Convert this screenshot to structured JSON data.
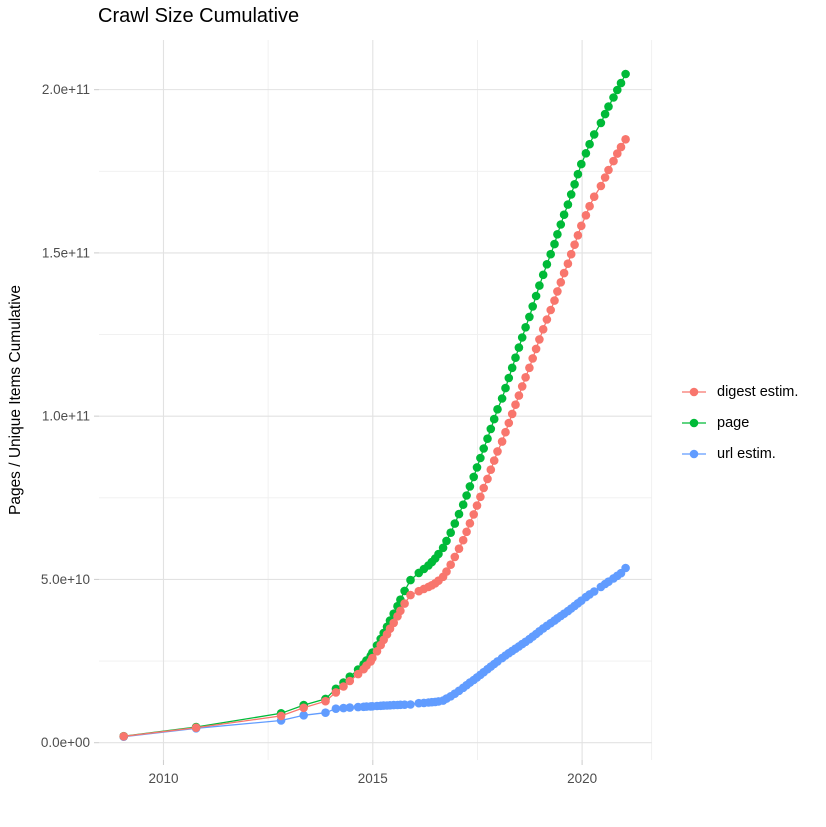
{
  "chart_data": {
    "type": "line",
    "title": "Crawl Size Cumulative",
    "xlabel": "",
    "ylabel": "Pages / Unique Items Cumulative",
    "x_unit": "crawl date (decimal year)",
    "y_unit": "count; series point values below are in billions (1e9)",
    "grid": true,
    "legend_position": "right",
    "xlim": [
      2008.46,
      2021.66
    ],
    "ylim_billion": [
      -5.3,
      215.2
    ],
    "x_major_ticks": [
      2010,
      2015,
      2020
    ],
    "x_tick_labels": [
      "2010",
      "2015",
      "2020"
    ],
    "x_minor_ticks": [
      2012.5,
      2017.5
    ],
    "y_major_ticks_billion": [
      0,
      50,
      100,
      150,
      200
    ],
    "y_tick_labels": [
      "0.0e+00",
      "5.0e+10",
      "1.0e+11",
      "1.5e+11",
      "2.0e+11"
    ],
    "y_minor_ticks_billion": [
      25,
      75,
      125,
      175
    ],
    "series": [
      {
        "name": "digest estim.",
        "color": "#F8766D",
        "points_year_billion": [
          [
            2009.05,
            1.95
          ],
          [
            2010.78,
            4.6
          ],
          [
            2012.81,
            8.2
          ],
          [
            2013.35,
            10.7
          ],
          [
            2013.87,
            12.7
          ],
          [
            2014.12,
            15.4
          ],
          [
            2014.3,
            17.2
          ],
          [
            2014.45,
            18.9
          ],
          [
            2014.65,
            21.0
          ],
          [
            2014.78,
            22.5
          ],
          [
            2014.85,
            23.6
          ],
          [
            2014.95,
            24.9
          ],
          [
            2014.99,
            25.9
          ],
          [
            2015.1,
            28.0
          ],
          [
            2015.19,
            29.9
          ],
          [
            2015.26,
            31.5
          ],
          [
            2015.34,
            33.2
          ],
          [
            2015.41,
            34.9
          ],
          [
            2015.5,
            36.7
          ],
          [
            2015.59,
            38.7
          ],
          [
            2015.66,
            40.4
          ],
          [
            2015.76,
            42.6
          ],
          [
            2015.9,
            45.2
          ],
          [
            2016.1,
            46.4
          ],
          [
            2016.22,
            47.1
          ],
          [
            2016.33,
            47.7
          ],
          [
            2016.41,
            48.2
          ],
          [
            2016.49,
            48.8
          ],
          [
            2016.57,
            49.6
          ],
          [
            2016.68,
            50.8
          ],
          [
            2016.76,
            52.4
          ],
          [
            2016.86,
            54.5
          ],
          [
            2016.96,
            56.9
          ],
          [
            2017.06,
            59.4
          ],
          [
            2017.16,
            62.0
          ],
          [
            2017.24,
            64.6
          ],
          [
            2017.32,
            67.2
          ],
          [
            2017.41,
            69.9
          ],
          [
            2017.49,
            72.6
          ],
          [
            2017.57,
            75.3
          ],
          [
            2017.65,
            78.0
          ],
          [
            2017.74,
            80.8
          ],
          [
            2017.82,
            83.6
          ],
          [
            2017.9,
            86.4
          ],
          [
            2017.98,
            89.2
          ],
          [
            2018.09,
            92.2
          ],
          [
            2018.17,
            95.1
          ],
          [
            2018.25,
            97.9
          ],
          [
            2018.33,
            100.7
          ],
          [
            2018.41,
            103.5
          ],
          [
            2018.49,
            106.3
          ],
          [
            2018.57,
            109.1
          ],
          [
            2018.65,
            111.9
          ],
          [
            2018.74,
            114.8
          ],
          [
            2018.82,
            117.7
          ],
          [
            2018.9,
            120.6
          ],
          [
            2018.98,
            123.5
          ],
          [
            2019.07,
            126.6
          ],
          [
            2019.16,
            129.6
          ],
          [
            2019.25,
            132.5
          ],
          [
            2019.34,
            135.4
          ],
          [
            2019.41,
            138.2
          ],
          [
            2019.49,
            141.0
          ],
          [
            2019.57,
            143.8
          ],
          [
            2019.66,
            146.7
          ],
          [
            2019.74,
            149.6
          ],
          [
            2019.82,
            152.5
          ],
          [
            2019.9,
            155.4
          ],
          [
            2019.98,
            158.3
          ],
          [
            2020.09,
            161.5
          ],
          [
            2020.18,
            164.3
          ],
          [
            2020.29,
            167.2
          ],
          [
            2020.45,
            170.5
          ],
          [
            2020.55,
            173.1
          ],
          [
            2020.63,
            175.4
          ],
          [
            2020.75,
            178.1
          ],
          [
            2020.84,
            180.4
          ],
          [
            2020.93,
            182.4
          ],
          [
            2021.04,
            184.8
          ]
        ]
      },
      {
        "name": "page",
        "color": "#00BA38",
        "points_year_billion": [
          [
            2009.05,
            2.0
          ],
          [
            2010.78,
            4.8
          ],
          [
            2012.81,
            9.0
          ],
          [
            2013.35,
            11.5
          ],
          [
            2013.87,
            13.4
          ],
          [
            2014.12,
            16.5
          ],
          [
            2014.3,
            18.4
          ],
          [
            2014.45,
            20.2
          ],
          [
            2014.65,
            22.4
          ],
          [
            2014.78,
            24.0
          ],
          [
            2014.85,
            25.2
          ],
          [
            2014.95,
            26.6
          ],
          [
            2014.99,
            27.6
          ],
          [
            2015.1,
            29.8
          ],
          [
            2015.19,
            31.8
          ],
          [
            2015.26,
            33.6
          ],
          [
            2015.34,
            35.5
          ],
          [
            2015.41,
            37.4
          ],
          [
            2015.5,
            39.5
          ],
          [
            2015.59,
            41.8
          ],
          [
            2015.66,
            43.8
          ],
          [
            2015.76,
            46.5
          ],
          [
            2015.9,
            49.8
          ],
          [
            2016.1,
            52.0
          ],
          [
            2016.22,
            53.2
          ],
          [
            2016.33,
            54.3
          ],
          [
            2016.41,
            55.3
          ],
          [
            2016.49,
            56.4
          ],
          [
            2016.57,
            57.8
          ],
          [
            2016.68,
            59.7
          ],
          [
            2016.76,
            61.8
          ],
          [
            2016.86,
            64.3
          ],
          [
            2016.96,
            67.1
          ],
          [
            2017.06,
            70.0
          ],
          [
            2017.16,
            72.9
          ],
          [
            2017.24,
            75.7
          ],
          [
            2017.32,
            78.5
          ],
          [
            2017.41,
            81.4
          ],
          [
            2017.49,
            84.3
          ],
          [
            2017.57,
            87.2
          ],
          [
            2017.65,
            90.1
          ],
          [
            2017.74,
            93.1
          ],
          [
            2017.82,
            96.1
          ],
          [
            2017.9,
            99.1
          ],
          [
            2017.98,
            102.1
          ],
          [
            2018.09,
            105.4
          ],
          [
            2018.17,
            108.6
          ],
          [
            2018.25,
            111.7
          ],
          [
            2018.33,
            114.8
          ],
          [
            2018.41,
            117.9
          ],
          [
            2018.49,
            121.0
          ],
          [
            2018.57,
            124.1
          ],
          [
            2018.65,
            127.2
          ],
          [
            2018.74,
            130.4
          ],
          [
            2018.82,
            133.6
          ],
          [
            2018.9,
            136.8
          ],
          [
            2018.98,
            140.0
          ],
          [
            2019.07,
            143.3
          ],
          [
            2019.16,
            146.5
          ],
          [
            2019.25,
            149.6
          ],
          [
            2019.34,
            152.7
          ],
          [
            2019.41,
            155.7
          ],
          [
            2019.49,
            158.7
          ],
          [
            2019.57,
            161.7
          ],
          [
            2019.66,
            164.8
          ],
          [
            2019.74,
            167.9
          ],
          [
            2019.82,
            171.0
          ],
          [
            2019.9,
            174.1
          ],
          [
            2019.98,
            177.2
          ],
          [
            2020.09,
            180.5
          ],
          [
            2020.18,
            183.3
          ],
          [
            2020.29,
            186.3
          ],
          [
            2020.45,
            189.8
          ],
          [
            2020.55,
            192.5
          ],
          [
            2020.63,
            194.8
          ],
          [
            2020.75,
            197.6
          ],
          [
            2020.84,
            199.9
          ],
          [
            2020.93,
            202.0
          ],
          [
            2021.04,
            204.8
          ]
        ]
      },
      {
        "name": "url estim.",
        "color": "#619CFF",
        "points_year_billion": [
          [
            2009.05,
            1.85
          ],
          [
            2010.78,
            4.4
          ],
          [
            2012.81,
            6.8
          ],
          [
            2013.35,
            8.4
          ],
          [
            2013.87,
            9.2
          ],
          [
            2014.12,
            10.4
          ],
          [
            2014.3,
            10.6
          ],
          [
            2014.45,
            10.75
          ],
          [
            2014.65,
            10.9
          ],
          [
            2014.78,
            11.0
          ],
          [
            2014.85,
            11.05
          ],
          [
            2014.95,
            11.1
          ],
          [
            2014.99,
            11.15
          ],
          [
            2015.1,
            11.25
          ],
          [
            2015.19,
            11.3
          ],
          [
            2015.26,
            11.35
          ],
          [
            2015.34,
            11.4
          ],
          [
            2015.41,
            11.45
          ],
          [
            2015.5,
            11.5
          ],
          [
            2015.59,
            11.55
          ],
          [
            2015.66,
            11.6
          ],
          [
            2015.76,
            11.65
          ],
          [
            2015.9,
            11.7
          ],
          [
            2016.1,
            12.1
          ],
          [
            2016.22,
            12.2
          ],
          [
            2016.33,
            12.3
          ],
          [
            2016.41,
            12.4
          ],
          [
            2016.49,
            12.5
          ],
          [
            2016.57,
            12.65
          ],
          [
            2016.68,
            12.9
          ],
          [
            2016.76,
            13.5
          ],
          [
            2016.86,
            14.2
          ],
          [
            2016.96,
            15.0
          ],
          [
            2017.06,
            15.9
          ],
          [
            2017.16,
            16.8
          ],
          [
            2017.24,
            17.6
          ],
          [
            2017.32,
            18.4
          ],
          [
            2017.41,
            19.2
          ],
          [
            2017.49,
            20.0
          ],
          [
            2017.57,
            20.8
          ],
          [
            2017.65,
            21.6
          ],
          [
            2017.74,
            22.5
          ],
          [
            2017.82,
            23.3
          ],
          [
            2017.9,
            24.1
          ],
          [
            2017.98,
            24.9
          ],
          [
            2018.09,
            25.9
          ],
          [
            2018.17,
            26.7
          ],
          [
            2018.25,
            27.4
          ],
          [
            2018.33,
            28.1
          ],
          [
            2018.41,
            28.8
          ],
          [
            2018.49,
            29.5
          ],
          [
            2018.57,
            30.2
          ],
          [
            2018.65,
            30.9
          ],
          [
            2018.74,
            31.7
          ],
          [
            2018.82,
            32.5
          ],
          [
            2018.9,
            33.3
          ],
          [
            2018.98,
            34.1
          ],
          [
            2019.07,
            35.0
          ],
          [
            2019.16,
            35.8
          ],
          [
            2019.25,
            36.6
          ],
          [
            2019.34,
            37.4
          ],
          [
            2019.41,
            38.1
          ],
          [
            2019.49,
            38.8
          ],
          [
            2019.57,
            39.5
          ],
          [
            2019.66,
            40.3
          ],
          [
            2019.74,
            41.1
          ],
          [
            2019.82,
            41.9
          ],
          [
            2019.9,
            42.7
          ],
          [
            2019.98,
            43.5
          ],
          [
            2020.09,
            44.6
          ],
          [
            2020.18,
            45.4
          ],
          [
            2020.29,
            46.3
          ],
          [
            2020.45,
            47.7
          ],
          [
            2020.55,
            48.6
          ],
          [
            2020.63,
            49.3
          ],
          [
            2020.75,
            50.3
          ],
          [
            2020.84,
            51.1
          ],
          [
            2020.93,
            51.9
          ],
          [
            2021.04,
            53.5
          ]
        ]
      }
    ]
  },
  "legend": {
    "items": [
      {
        "label": "digest estim.",
        "color": "#F8766D"
      },
      {
        "label": "page",
        "color": "#00BA38"
      },
      {
        "label": "url estim.",
        "color": "#619CFF"
      }
    ]
  },
  "style": {
    "background": "#FFFFFF",
    "grid_major_color": "#E2E2E2",
    "grid_minor_color": "#EFEFEF",
    "tick_mark_color": "#D0D0D0",
    "axis_text_color": "#4D4D4D",
    "title_color": "#000000"
  }
}
